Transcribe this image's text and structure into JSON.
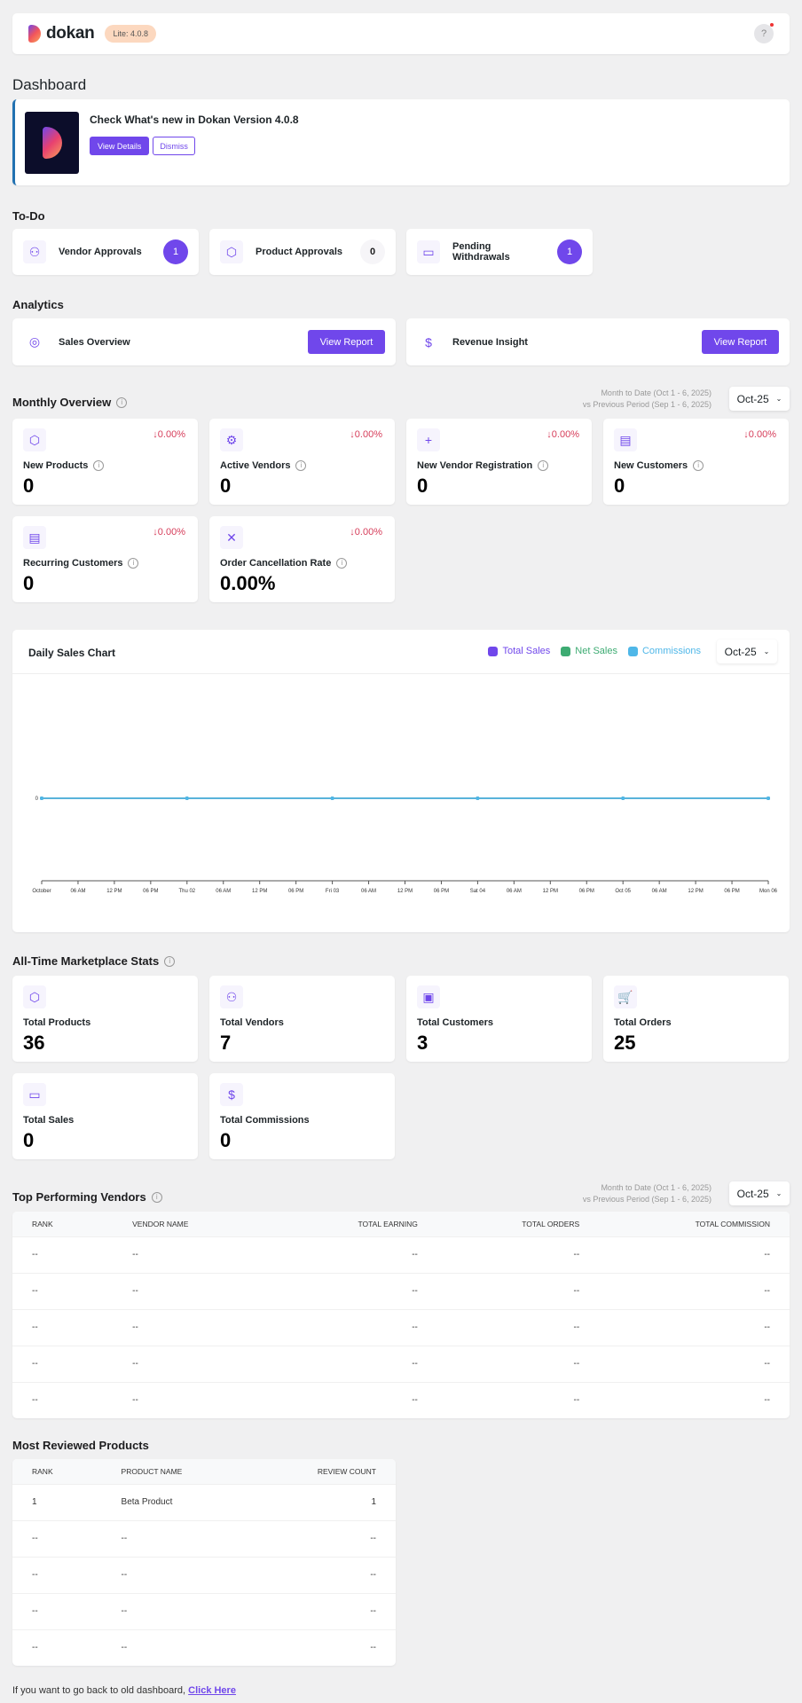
{
  "header": {
    "brand": "dokan",
    "version": "Lite: 4.0.8",
    "help": "?"
  },
  "page_title": "Dashboard",
  "notice": {
    "title": "Check What's new in Dokan Version 4.0.8",
    "view": "View Details",
    "dismiss": "Dismiss"
  },
  "todo": {
    "title": "To-Do",
    "items": [
      {
        "label": "Vendor Approvals",
        "count": "1"
      },
      {
        "label": "Product Approvals",
        "count": "0"
      },
      {
        "label": "Pending Withdrawals",
        "count": "1"
      }
    ]
  },
  "analytics": {
    "title": "Analytics",
    "items": [
      {
        "label": "Sales Overview",
        "button": "View Report"
      },
      {
        "label": "Revenue Insight",
        "button": "View Report"
      }
    ]
  },
  "monthly": {
    "title": "Monthly Overview",
    "period1": "Month to Date (Oct 1 - 6, 2025)",
    "period2": "vs Previous Period (Sep 1 - 6, 2025)",
    "month": "Oct-25",
    "cards": [
      {
        "label": "New Products",
        "value": "0",
        "change": "↓0.00%"
      },
      {
        "label": "Active Vendors",
        "value": "0",
        "change": "↓0.00%"
      },
      {
        "label": "New Vendor Registration",
        "value": "0",
        "change": "↓0.00%"
      },
      {
        "label": "New Customers",
        "value": "0",
        "change": "↓0.00%"
      },
      {
        "label": "Recurring Customers",
        "value": "0",
        "change": "↓0.00%"
      },
      {
        "label": "Order Cancellation Rate",
        "value": "0.00%",
        "change": "↓0.00%"
      }
    ]
  },
  "chart_data": {
    "type": "line",
    "title": "Daily Sales Chart",
    "month": "Oct-25",
    "x_ticks": [
      "October",
      "06 AM",
      "12 PM",
      "06 PM",
      "Thu 02",
      "06 AM",
      "12 PM",
      "06 PM",
      "Fri 03",
      "06 AM",
      "12 PM",
      "06 PM",
      "Sat 04",
      "06 AM",
      "12 PM",
      "06 PM",
      "Oct 05",
      "06 AM",
      "12 PM",
      "06 PM",
      "Mon 06"
    ],
    "x": [
      "Oct 01",
      "Oct 02",
      "Oct 03",
      "Oct 04",
      "Oct 05",
      "Oct 06"
    ],
    "y_ticks": [
      "0"
    ],
    "series": [
      {
        "name": "Total Sales",
        "color": "#7047eb",
        "values": [
          0,
          0,
          0,
          0,
          0,
          0
        ]
      },
      {
        "name": "Net Sales",
        "color": "#3dab72",
        "values": [
          0,
          0,
          0,
          0,
          0,
          0
        ]
      },
      {
        "name": "Commissions",
        "color": "#4fb7e8",
        "values": [
          0,
          0,
          0,
          0,
          0,
          0
        ]
      }
    ]
  },
  "alltime": {
    "title": "All-Time Marketplace Stats",
    "cards": [
      {
        "label": "Total Products",
        "value": "36"
      },
      {
        "label": "Total Vendors",
        "value": "7"
      },
      {
        "label": "Total Customers",
        "value": "3"
      },
      {
        "label": "Total Orders",
        "value": "25"
      },
      {
        "label": "Total Sales",
        "value": "0"
      },
      {
        "label": "Total Commissions",
        "value": "0"
      }
    ]
  },
  "vendors": {
    "title": "Top Performing Vendors",
    "period1": "Month to Date (Oct 1 - 6, 2025)",
    "period2": "vs Previous Period (Sep 1 - 6, 2025)",
    "month": "Oct-25",
    "headers": [
      "RANK",
      "VENDOR NAME",
      "TOTAL EARNING",
      "TOTAL ORDERS",
      "TOTAL COMMISSION"
    ],
    "rows": [
      [
        "--",
        "--",
        "--",
        "--",
        "--"
      ],
      [
        "--",
        "--",
        "--",
        "--",
        "--"
      ],
      [
        "--",
        "--",
        "--",
        "--",
        "--"
      ],
      [
        "--",
        "--",
        "--",
        "--",
        "--"
      ],
      [
        "--",
        "--",
        "--",
        "--",
        "--"
      ]
    ]
  },
  "reviewed": {
    "title": "Most Reviewed Products",
    "headers": [
      "RANK",
      "PRODUCT NAME",
      "REVIEW COUNT"
    ],
    "rows": [
      [
        "1",
        "Beta Product",
        "1"
      ],
      [
        "--",
        "--",
        "--"
      ],
      [
        "--",
        "--",
        "--"
      ],
      [
        "--",
        "--",
        "--"
      ],
      [
        "--",
        "--",
        "--"
      ]
    ]
  },
  "footer": {
    "text": "If you want to go back to old dashboard,",
    "link": "Click Here"
  }
}
